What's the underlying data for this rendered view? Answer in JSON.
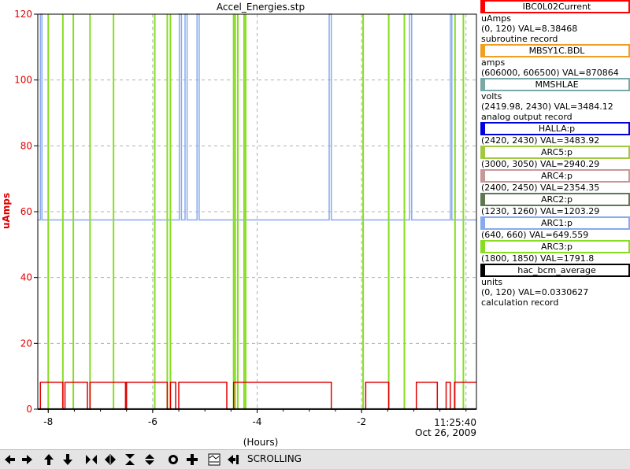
{
  "chart_data": {
    "type": "line",
    "title": "Accel_Energies.stp",
    "xlabel": "(Hours)",
    "ylabel": "uAmps",
    "xlim": [
      -8.2,
      0.2
    ],
    "ylim": [
      0,
      120
    ],
    "x_ticks": [
      -8,
      -6,
      -4,
      -2
    ],
    "x_tick_labels": [
      "-8",
      "-6",
      "-4",
      "-2"
    ],
    "y_ticks": [
      0,
      20,
      40,
      60,
      80,
      100,
      120
    ],
    "y_tick_labels": [
      "0",
      "20",
      "40",
      "60",
      "80",
      "100",
      "120"
    ],
    "end_time_label": "11:25:40",
    "end_date_label": "Oct 26, 2009",
    "grid": true,
    "series": [
      {
        "name": "IBC0L02Current",
        "color": "#e00000",
        "base": 8.2,
        "drops": [
          [
            -8.2,
            -8.15
          ],
          [
            -7.72,
            -7.68
          ],
          [
            -7.25,
            -7.2
          ],
          [
            -6.52,
            -6.5
          ],
          [
            -5.72,
            -5.66
          ],
          [
            -5.56,
            -5.5
          ],
          [
            -4.58,
            -4.45
          ],
          [
            -2.58,
            -1.92
          ],
          [
            -1.48,
            -0.95
          ],
          [
            -0.55,
            -0.38
          ],
          [
            -0.3,
            -0.22
          ]
        ]
      },
      {
        "name": "ARC1:p",
        "color": "#88aaee",
        "base": 57.5,
        "spikes": [
          [
            -8.15,
            -8.12
          ],
          [
            -5.49,
            -5.45
          ],
          [
            -5.38,
            -5.34
          ],
          [
            -5.15,
            -5.11
          ],
          [
            -2.62,
            -2.58
          ],
          [
            -1.08,
            -1.04
          ],
          [
            -0.3,
            -0.27
          ]
        ]
      },
      {
        "name": "ARC3:p",
        "color": "#88dd22",
        "lines": [
          -8.0,
          -7.72,
          -7.52,
          -7.2,
          -6.75,
          -5.96,
          -5.72,
          -5.66,
          -4.45,
          -4.42,
          -4.37,
          -4.25,
          -4.22,
          -1.97,
          -1.48,
          -1.18,
          -0.21,
          -0.05
        ]
      },
      {
        "name": "hac_bcm_average",
        "color": "#000000",
        "value": 0.03
      }
    ]
  },
  "legend": [
    {
      "name": "IBC0L02Current",
      "color": "#ff0000",
      "lines": [
        "uAmps",
        "(0, 120) VAL=8.38468",
        "subroutine record"
      ]
    },
    {
      "name": "MBSY1C.BDL",
      "color": "#f0a020",
      "lines": [
        "amps",
        "(606000, 606500) VAL=870864"
      ]
    },
    {
      "name": "MMSHLAE",
      "color": "#78a8a8",
      "lines": [
        "volts",
        "(2419.98, 2430) VAL=3484.12",
        "analog output record"
      ]
    },
    {
      "name": "HALLA:p",
      "color": "#0000dd",
      "lines": [
        "(2420, 2430) VAL=3483.92"
      ]
    },
    {
      "name": "ARC5:p",
      "color": "#a0c840",
      "lines": [
        "(3000, 3050) VAL=2940.29"
      ]
    },
    {
      "name": "ARC4:p",
      "color": "#c89898",
      "lines": [
        "(2400, 2450) VAL=2354.35"
      ]
    },
    {
      "name": "ARC2:p",
      "color": "#607850",
      "lines": [
        "(1230, 1260) VAL=1203.29"
      ]
    },
    {
      "name": "ARC1:p",
      "color": "#88aaee",
      "lines": [
        "(640, 660) VAL=649.559"
      ]
    },
    {
      "name": "ARC3:p",
      "color": "#88dd22",
      "lines": [
        "(1800, 1850) VAL=1791.8"
      ]
    },
    {
      "name": "hac_bcm_average",
      "color": "#000000",
      "lines": [
        "units",
        "(0, 120) VAL=0.0330627",
        "calculation record"
      ]
    }
  ],
  "toolbar": {
    "buttons": [
      {
        "name": "scroll-left-button",
        "icon": "arrow-left-icon"
      },
      {
        "name": "scroll-right-button",
        "icon": "arrow-right-icon"
      },
      {
        "name": "scroll-up-button",
        "icon": "arrow-up-icon"
      },
      {
        "name": "scroll-down-button",
        "icon": "arrow-down-icon"
      },
      {
        "name": "zoom-in-x-button",
        "icon": "zoom-in-horizontal-icon"
      },
      {
        "name": "zoom-out-x-button",
        "icon": "zoom-out-horizontal-icon"
      },
      {
        "name": "zoom-in-y-button",
        "icon": "zoom-in-vertical-icon"
      },
      {
        "name": "zoom-out-y-button",
        "icon": "zoom-out-vertical-icon"
      },
      {
        "name": "auto-scale-button",
        "icon": "circle-icon"
      },
      {
        "name": "add-signal-button",
        "icon": "plus-icon"
      },
      {
        "name": "config-button",
        "icon": "config-icon"
      },
      {
        "name": "scroll-to-end-button",
        "icon": "arrow-to-end-icon"
      }
    ],
    "status": "SCROLLING"
  }
}
